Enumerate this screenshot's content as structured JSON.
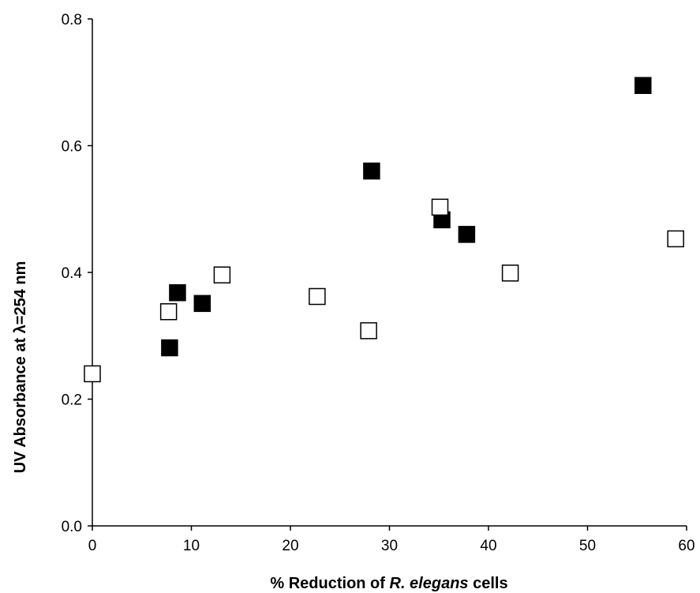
{
  "chart_data": {
    "type": "scatter",
    "title": "",
    "xlabel_parts": [
      "% Reduction of ",
      "R. elegans",
      " cells"
    ],
    "ylabel": "UV Absorbance at λ=254 nm",
    "xlim": [
      0,
      60
    ],
    "ylim": [
      0,
      0.8
    ],
    "xticks": [
      0,
      10,
      20,
      30,
      40,
      50,
      60
    ],
    "yticks": [
      0.0,
      0.2,
      0.4,
      0.6,
      0.8
    ],
    "ytick_labels": [
      "0.0",
      "0.2",
      "0.4",
      "0.6",
      "0.8"
    ],
    "grid": false,
    "legend": "none",
    "series": [
      {
        "marker": "filled-square",
        "color": "#000000",
        "points": [
          {
            "x": 7.8,
            "y": 0.281
          },
          {
            "x": 8.6,
            "y": 0.368
          },
          {
            "x": 11.1,
            "y": 0.351
          },
          {
            "x": 28.2,
            "y": 0.56
          },
          {
            "x": 35.3,
            "y": 0.483
          },
          {
            "x": 37.8,
            "y": 0.46
          },
          {
            "x": 55.6,
            "y": 0.695
          }
        ]
      },
      {
        "marker": "open-square",
        "color": "#000000",
        "points": [
          {
            "x": 0.0,
            "y": 0.24
          },
          {
            "x": 7.7,
            "y": 0.338
          },
          {
            "x": 13.1,
            "y": 0.396
          },
          {
            "x": 22.7,
            "y": 0.362
          },
          {
            "x": 27.9,
            "y": 0.308
          },
          {
            "x": 35.1,
            "y": 0.503
          },
          {
            "x": 42.2,
            "y": 0.399
          },
          {
            "x": 58.9,
            "y": 0.453
          }
        ]
      }
    ]
  }
}
